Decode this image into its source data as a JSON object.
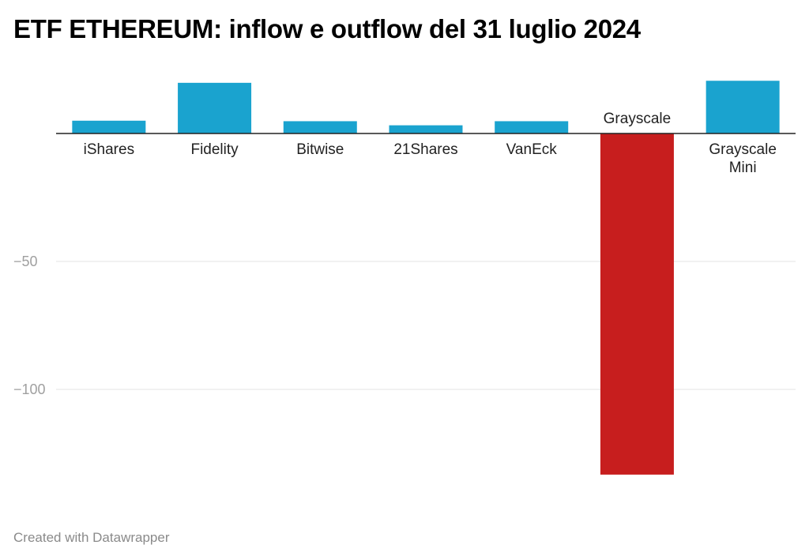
{
  "title": "ETF ETHEREUM: inflow e outflow del 31 luglio 2024",
  "footer": "Created with Datawrapper",
  "colors": {
    "positive": "#1aa3cf",
    "negative": "#c71e1e",
    "grid": "#e3e3e3",
    "baseline": "#222222"
  },
  "chart_data": {
    "type": "bar",
    "title": "ETF ETHEREUM: inflow e outflow del 31 luglio 2024",
    "categories": [
      [
        "iShares"
      ],
      [
        "Fidelity"
      ],
      [
        "Bitwise"
      ],
      [
        "21Shares"
      ],
      [
        "VanEck"
      ],
      [
        "Grayscale"
      ],
      [
        "Grayscale",
        "Mini"
      ]
    ],
    "values": [
      5,
      19.8,
      4.8,
      3.2,
      4.8,
      -133.3,
      20.6
    ],
    "yticks": [
      -50,
      -100
    ],
    "ytick_labels": [
      "−50",
      "−100"
    ],
    "ylim": [
      -140,
      22
    ],
    "xlabel": "",
    "ylabel": "",
    "grid": true
  }
}
